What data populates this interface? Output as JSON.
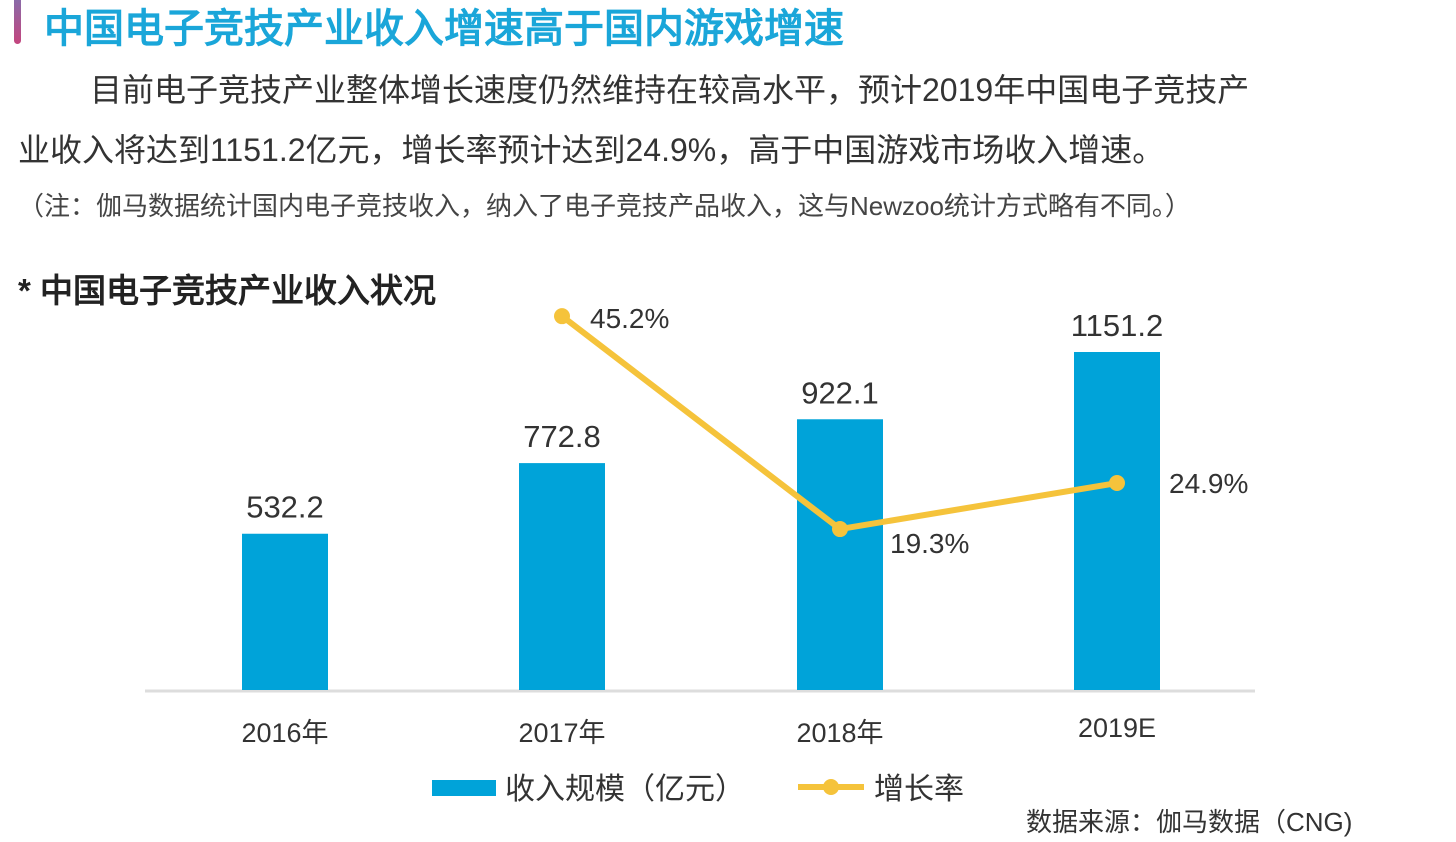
{
  "header": {
    "title": "中国电子竞技产业收入增速高于国内游戏增速",
    "paragraph_line1": "目前电子竞技产业整体增长速度仍然维持在较高水平，预计2019年中国电子竞技产",
    "paragraph_line2": "业收入将达到1151.2亿元，增长率预计达到24.9%，高于中国游戏市场收入增速。",
    "note": "（注：伽马数据统计国内电子竞技收入，纳入了电子竞技产品收入，这与Newzoo统计方式略有不同。）"
  },
  "chart_data": {
    "type": "bar",
    "title": "* 中国电子竞技产业收入状况",
    "categories": [
      "2016年",
      "2017年",
      "2018年",
      "2019E"
    ],
    "series": [
      {
        "name": "收入规模（亿元）",
        "type": "bar",
        "color": "#00a3d9",
        "values": [
          532.2,
          772.8,
          922.1,
          1151.2
        ],
        "labels": [
          "532.2",
          "772.8",
          "922.1",
          "1151.2"
        ]
      },
      {
        "name": "增长率",
        "type": "line",
        "color": "#f5c33b",
        "values": [
          null,
          45.2,
          19.3,
          24.9
        ],
        "labels": [
          "",
          "45.2%",
          "19.3%",
          "24.9%"
        ]
      }
    ],
    "xlabel": "",
    "ylabel": "",
    "ylim": [
      0,
      1151.2
    ],
    "y2lim": [
      0,
      45.2
    ],
    "grid": false,
    "legend_placement": "bottom-center",
    "source": "数据来源：伽马数据（CNG)"
  }
}
